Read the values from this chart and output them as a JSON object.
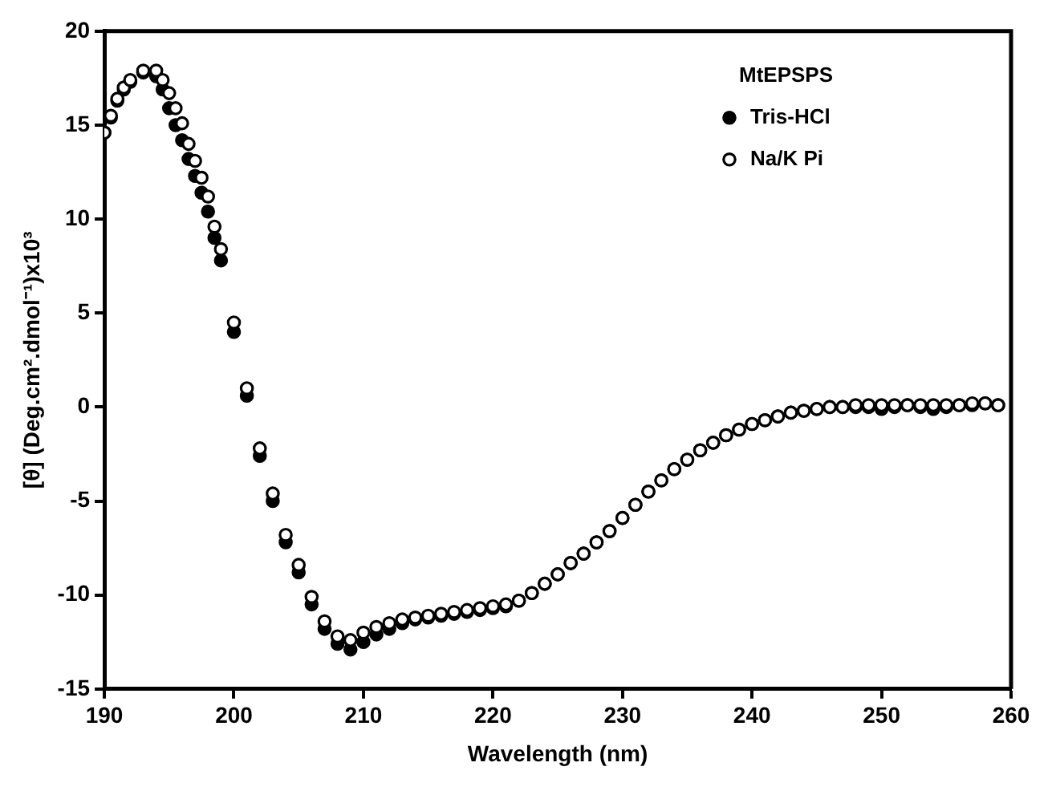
{
  "chart_data": {
    "type": "scatter",
    "xlabel": "Wavelength (nm)",
    "ylabel": "[θ] (Deg.cm².dmol⁻¹)x10³",
    "legend_title": "MtEPSPS",
    "legend": "top right",
    "marker": "circle",
    "grid": false,
    "xlim": [
      190,
      260
    ],
    "xticks": [
      190,
      200,
      210,
      220,
      230,
      240,
      250,
      260
    ],
    "ylim": [
      -15,
      20
    ],
    "yticks": [
      -15,
      -10,
      -5,
      0,
      5,
      10,
      15,
      20
    ],
    "x": [
      190,
      190.5,
      191,
      191.5,
      192,
      193,
      194,
      194.5,
      195,
      195.5,
      196,
      196.5,
      197,
      197.5,
      198,
      198.5,
      199,
      200,
      201,
      202,
      203,
      204,
      205,
      206,
      207,
      208,
      209,
      210,
      211,
      212,
      213,
      214,
      215,
      216,
      217,
      218,
      219,
      220,
      221,
      222,
      223,
      224,
      225,
      226,
      227,
      228,
      229,
      230,
      231,
      232,
      233,
      234,
      235,
      236,
      237,
      238,
      239,
      240,
      241,
      242,
      243,
      244,
      245,
      246,
      247,
      248,
      249,
      250,
      251,
      252,
      253,
      254,
      255,
      256,
      257,
      258,
      259
    ],
    "series": [
      {
        "name": "Tris-HCl",
        "color": "#000000",
        "values": [
          14.6,
          15.4,
          16.3,
          16.9,
          17.3,
          17.8,
          17.6,
          16.9,
          15.9,
          15.0,
          14.2,
          13.2,
          12.3,
          11.4,
          10.4,
          9.0,
          7.8,
          4.0,
          0.6,
          -2.6,
          -5.0,
          -7.2,
          -8.8,
          -10.5,
          -11.8,
          -12.6,
          -12.9,
          -12.5,
          -12.1,
          -11.8,
          -11.5,
          -11.3,
          -11.2,
          -11.1,
          -11.0,
          -10.9,
          -10.8,
          -10.7,
          -10.6,
          -10.3,
          -9.9,
          -9.4,
          -8.9,
          -8.3,
          -7.8,
          -7.2,
          -6.6,
          -5.9,
          -5.2,
          -4.5,
          -3.9,
          -3.3,
          -2.8,
          -2.3,
          -1.9,
          -1.5,
          -1.2,
          -0.9,
          -0.7,
          -0.5,
          -0.3,
          -0.2,
          -0.1,
          0,
          0,
          0,
          0,
          -0.1,
          0,
          0.1,
          0,
          -0.1,
          0,
          0.1,
          0.1,
          0.2,
          0.1
        ]
      },
      {
        "name": "Na/K Pi",
        "color": "#000000",
        "values": [
          14.6,
          15.5,
          16.4,
          17.0,
          17.4,
          17.9,
          17.9,
          17.4,
          16.7,
          15.9,
          15.1,
          14.0,
          13.1,
          12.2,
          11.2,
          9.6,
          8.4,
          4.5,
          1.0,
          -2.2,
          -4.6,
          -6.8,
          -8.4,
          -10.1,
          -11.4,
          -12.2,
          -12.4,
          -12.0,
          -11.7,
          -11.5,
          -11.3,
          -11.2,
          -11.1,
          -11.0,
          -10.9,
          -10.8,
          -10.7,
          -10.6,
          -10.5,
          -10.3,
          -9.9,
          -9.4,
          -8.9,
          -8.3,
          -7.8,
          -7.2,
          -6.6,
          -5.9,
          -5.2,
          -4.5,
          -3.9,
          -3.3,
          -2.8,
          -2.3,
          -1.9,
          -1.5,
          -1.2,
          -0.9,
          -0.7,
          -0.5,
          -0.3,
          -0.2,
          -0.1,
          0,
          0,
          0.1,
          0.1,
          0.1,
          0.1,
          0.1,
          0.1,
          0.1,
          0.1,
          0.1,
          0.2,
          0.2,
          0.1
        ]
      }
    ]
  }
}
